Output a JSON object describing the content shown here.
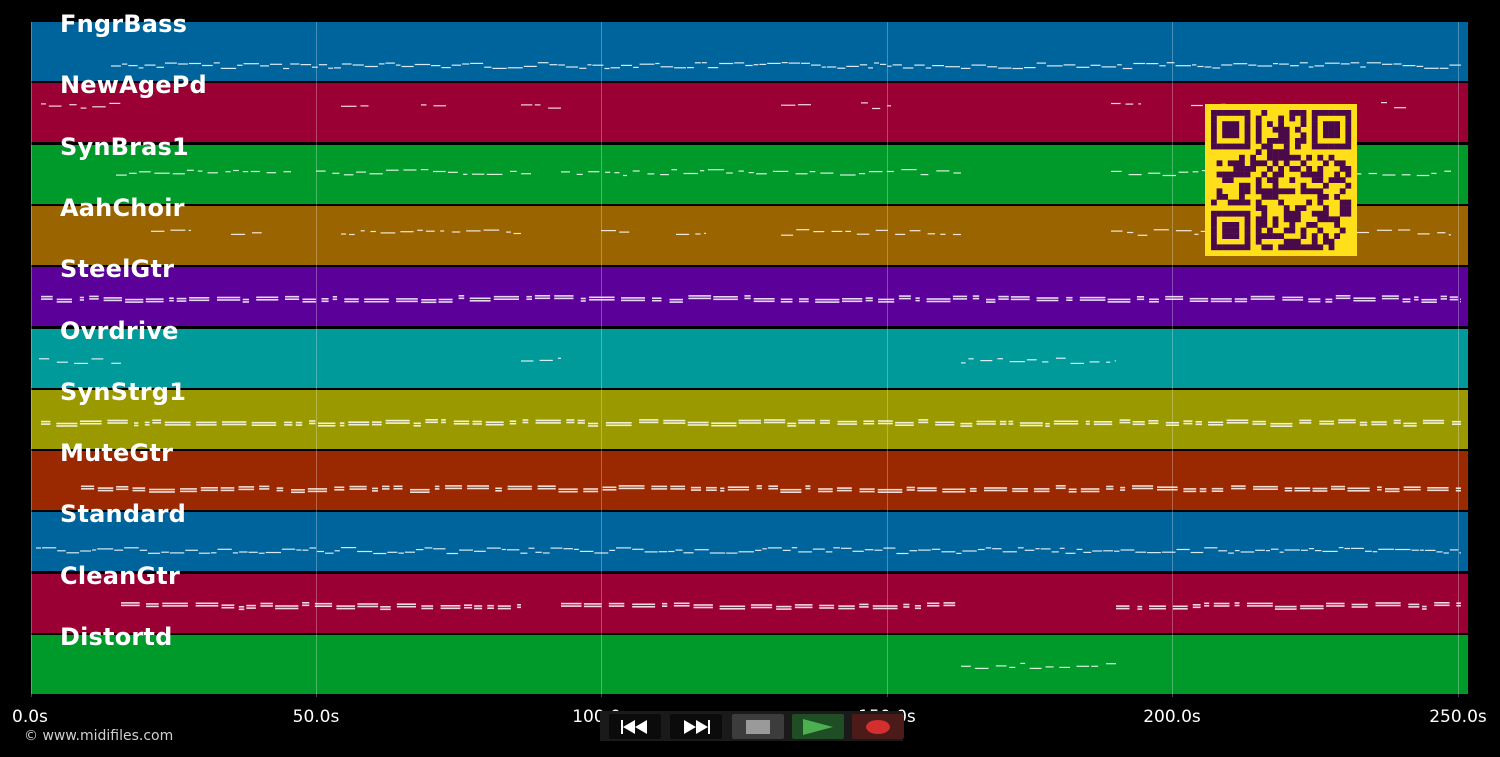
{
  "tracks": [
    {
      "name": "FngrBass",
      "color": "#00649c"
    },
    {
      "name": "NewAgePd",
      "color": "#9b0034"
    },
    {
      "name": "SynBras1",
      "color": "#009a2a"
    },
    {
      "name": "AahChoir",
      "color": "#9a6400"
    },
    {
      "name": "SteelGtr",
      "color": "#5c009a"
    },
    {
      "name": "Ovrdrive",
      "color": "#009a9a"
    },
    {
      "name": "SynStrg1",
      "color": "#9a9a00"
    },
    {
      "name": "MuteGtr",
      "color": "#9a2800"
    },
    {
      "name": "Standard",
      "color": "#00649c"
    },
    {
      "name": "CleanGtr",
      "color": "#9b0034"
    },
    {
      "name": "Distortd",
      "color": "#009a2a"
    }
  ],
  "timeline": {
    "ticks": [
      "0.0s",
      "50.0s",
      "100.0s",
      "150.0s",
      "200.0s",
      "250.0s"
    ]
  },
  "copyright": "© www.midifiles.com",
  "transport": {
    "rewind": "rewind-icon",
    "fast_forward": "fast-forward-icon",
    "stop": "stop-icon",
    "play": "play-icon",
    "record": "record-icon"
  },
  "colors": {
    "qr_bg": "#ffde1a",
    "qr_fg": "#4a0a4a",
    "play": "#4caf50",
    "record": "#d32f2f"
  }
}
